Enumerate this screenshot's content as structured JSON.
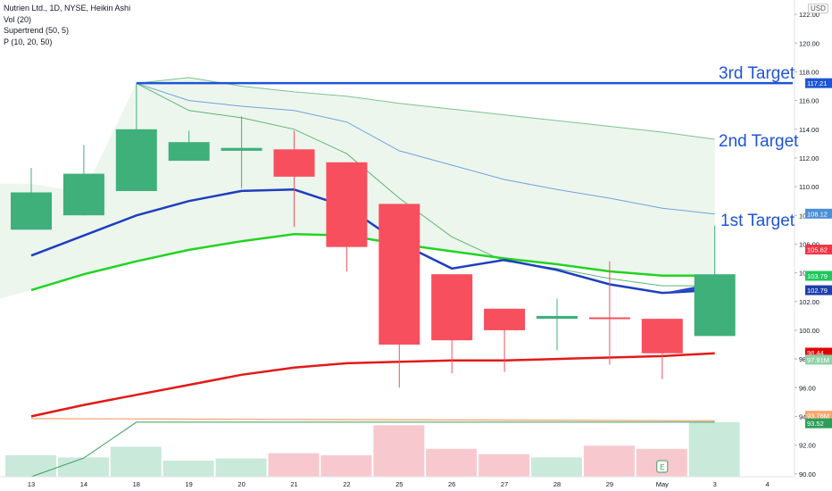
{
  "legend": {
    "title": "Nutrien Ltd., 1D, NYSE, Heikin Ashi",
    "vol": "Vol (20)",
    "supertrend": "Supertrend (50, 5)",
    "p": "P (10, 20, 50)"
  },
  "currency": "USD",
  "targets": {
    "third": "3rd Target",
    "second": "2nd Target",
    "first": "1st Target"
  },
  "marker": "E",
  "chart_data": {
    "type": "candlestick",
    "x_labels": [
      "13",
      "14",
      "18",
      "19",
      "20",
      "21",
      "22",
      "25",
      "26",
      "27",
      "28",
      "29",
      "May",
      "3",
      "4"
    ],
    "y_ticks": [
      "90.00",
      "92.00",
      "94.00",
      "96.00",
      "98.00",
      "100.00",
      "102.00",
      "104.00",
      "106.00",
      "108.00",
      "110.00",
      "112.00",
      "114.00",
      "116.00",
      "118.00",
      "120.00",
      "122.00"
    ],
    "ylim": [
      89.8,
      123.0
    ],
    "candles": [
      {
        "x": "13",
        "open": 107.0,
        "close": 109.6,
        "high": 111.3,
        "low": 107.0
      },
      {
        "x": "14",
        "open": 108.0,
        "close": 110.9,
        "high": 112.9,
        "low": 108.0
      },
      {
        "x": "18",
        "open": 109.7,
        "close": 114.0,
        "high": 117.2,
        "low": 109.7
      },
      {
        "x": "19",
        "open": 111.8,
        "close": 113.1,
        "high": 113.9,
        "low": 111.8
      },
      {
        "x": "20",
        "open": 112.5,
        "close": 112.7,
        "high": 114.9,
        "low": 109.9
      },
      {
        "x": "21",
        "open": 112.6,
        "close": 110.7,
        "high": 113.9,
        "low": 107.2
      },
      {
        "x": "22",
        "open": 111.7,
        "close": 105.8,
        "high": 111.7,
        "low": 104.1
      },
      {
        "x": "25",
        "open": 108.8,
        "close": 99.0,
        "high": 108.8,
        "low": 96.0
      },
      {
        "x": "26",
        "open": 103.9,
        "close": 99.3,
        "high": 103.9,
        "low": 97.0
      },
      {
        "x": "27",
        "open": 101.5,
        "close": 100.0,
        "high": 101.5,
        "low": 97.1
      },
      {
        "x": "28",
        "open": 100.8,
        "close": 101.0,
        "high": 102.2,
        "low": 98.6
      },
      {
        "x": "29",
        "open": 100.9,
        "close": 100.8,
        "high": 104.8,
        "low": 97.6
      },
      {
        "x": "May",
        "open": 100.8,
        "close": 98.4,
        "high": 100.8,
        "low": 96.6
      },
      {
        "x": "3",
        "open": 99.6,
        "close": 103.9,
        "high": 107.3,
        "low": 99.6
      }
    ],
    "volume": [
      {
        "x": "13",
        "value": 1.0,
        "up": true
      },
      {
        "x": "14",
        "value": 0.9,
        "up": true
      },
      {
        "x": "18",
        "value": 1.4,
        "up": true
      },
      {
        "x": "19",
        "value": 0.75,
        "up": true
      },
      {
        "x": "20",
        "value": 0.85,
        "up": true
      },
      {
        "x": "21",
        "value": 1.1,
        "up": false
      },
      {
        "x": "22",
        "value": 1.0,
        "up": false
      },
      {
        "x": "25",
        "value": 2.4,
        "up": false
      },
      {
        "x": "26",
        "value": 1.3,
        "up": false
      },
      {
        "x": "27",
        "value": 1.05,
        "up": false
      },
      {
        "x": "28",
        "value": 0.9,
        "up": true
      },
      {
        "x": "29",
        "value": 1.45,
        "up": false
      },
      {
        "x": "May",
        "value": 1.3,
        "up": false
      },
      {
        "x": "3",
        "value": 2.55,
        "up": true
      }
    ],
    "lines": {
      "blue_ma": [
        [
          0,
          105.2
        ],
        [
          1,
          106.6
        ],
        [
          2,
          108.0
        ],
        [
          3,
          109.0
        ],
        [
          4,
          109.7
        ],
        [
          5,
          109.8
        ],
        [
          6,
          108.6
        ],
        [
          7,
          106.1
        ],
        [
          8,
          104.3
        ],
        [
          9,
          104.9
        ],
        [
          10,
          104.2
        ],
        [
          11,
          103.2
        ],
        [
          12,
          102.6
        ],
        [
          13,
          102.8
        ]
      ],
      "green_ma": [
        [
          0,
          102.8
        ],
        [
          1,
          103.9
        ],
        [
          2,
          104.8
        ],
        [
          3,
          105.6
        ],
        [
          4,
          106.2
        ],
        [
          5,
          106.7
        ],
        [
          6,
          106.6
        ],
        [
          7,
          106.0
        ],
        [
          8,
          105.5
        ],
        [
          9,
          105.0
        ],
        [
          10,
          104.6
        ],
        [
          11,
          104.1
        ],
        [
          12,
          103.8
        ],
        [
          13,
          103.8
        ]
      ],
      "red_ma": [
        [
          0,
          94.0
        ],
        [
          1,
          94.8
        ],
        [
          2,
          95.5
        ],
        [
          3,
          96.2
        ],
        [
          4,
          96.9
        ],
        [
          5,
          97.4
        ],
        [
          6,
          97.7
        ],
        [
          7,
          97.8
        ],
        [
          8,
          97.9
        ],
        [
          9,
          97.9
        ],
        [
          10,
          98.0
        ],
        [
          11,
          98.1
        ],
        [
          12,
          98.2
        ],
        [
          13,
          98.4
        ]
      ],
      "band_upper": [
        [
          2,
          117.2
        ],
        [
          3,
          117.6
        ],
        [
          4,
          117.0
        ],
        [
          5,
          116.6
        ],
        [
          6,
          116.3
        ],
        [
          7,
          115.8
        ],
        [
          8,
          115.4
        ],
        [
          9,
          115.0
        ],
        [
          10,
          114.6
        ],
        [
          11,
          114.2
        ],
        [
          12,
          113.8
        ],
        [
          13,
          113.3
        ]
      ],
      "band_mid": [
        [
          2,
          117.2
        ],
        [
          3,
          116.0
        ],
        [
          4,
          115.6
        ],
        [
          5,
          115.3
        ],
        [
          6,
          114.5
        ],
        [
          7,
          112.5
        ],
        [
          8,
          111.5
        ],
        [
          9,
          110.5
        ],
        [
          10,
          109.8
        ],
        [
          11,
          109.2
        ],
        [
          12,
          108.5
        ],
        [
          13,
          108.1
        ]
      ],
      "band_lower": [
        [
          2,
          117.2
        ],
        [
          3,
          115.3
        ],
        [
          4,
          114.8
        ],
        [
          5,
          114.0
        ],
        [
          6,
          112.3
        ],
        [
          7,
          109.2
        ],
        [
          8,
          106.5
        ],
        [
          9,
          104.8
        ],
        [
          10,
          104.3
        ],
        [
          11,
          103.6
        ],
        [
          12,
          103.1
        ],
        [
          13,
          103.1
        ]
      ],
      "vol_ma_orange": [
        [
          0,
          93.85
        ],
        [
          13,
          93.7
        ]
      ],
      "vol_ma_green": [
        [
          0,
          89.8
        ],
        [
          1,
          91.1
        ],
        [
          2,
          93.6
        ],
        [
          13,
          93.6
        ]
      ]
    },
    "target_lines": [
      117.21
    ],
    "price_badges": [
      {
        "label": "117.21",
        "value": 117.21,
        "color": "#1e55d6"
      },
      {
        "label": "108.12",
        "value": 108.12,
        "color": "#4d8fd6"
      },
      {
        "label": "105.62",
        "value": 105.62,
        "color": "#f23645"
      },
      {
        "label": "103.79",
        "value": 103.79,
        "color": "#22c55e"
      },
      {
        "label": "102.79",
        "value": 102.79,
        "color": "#1e3fae"
      },
      {
        "label": "98.44",
        "value": 98.44,
        "color": "#e00000"
      },
      {
        "label": "97.91M",
        "value": 97.95,
        "color": "#8fd1a8"
      },
      {
        "label": "93.76M",
        "value": 94.05,
        "color": "#f5a76e"
      },
      {
        "label": "93.52",
        "value": 93.52,
        "color": "#2e9e5a"
      }
    ],
    "colors": {
      "up": "#3fb07a",
      "down": "#f74f5e",
      "blue_ma": "#1e3fbf",
      "green_ma": "#23d323",
      "red_ma": "#e31919",
      "band": "#3a9e5a",
      "band_mid": "#6fa3dd",
      "target": "#1e55d6",
      "vol_up": "#c9eadb",
      "vol_down": "#f7c9cf"
    }
  }
}
